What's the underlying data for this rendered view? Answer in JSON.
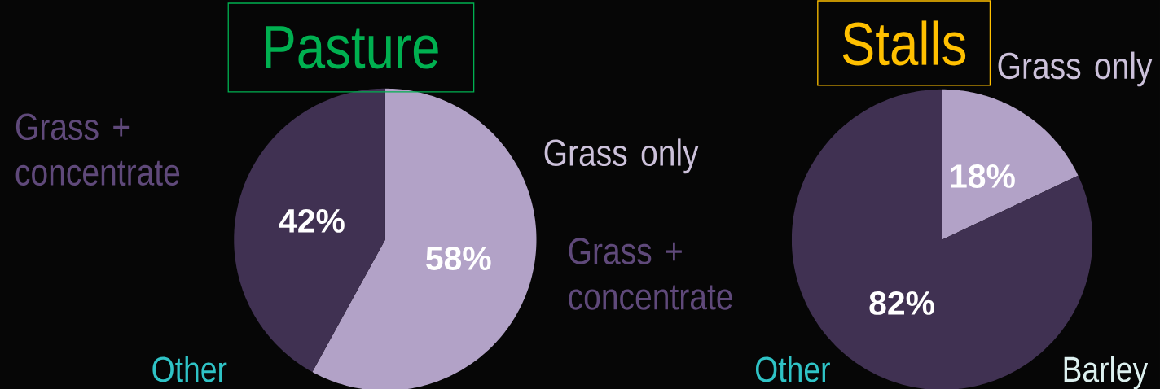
{
  "chart_data": [
    {
      "type": "pie",
      "title": "Pasture",
      "categories": [
        "Grass only",
        "Grass + concentrate"
      ],
      "values": [
        58,
        42
      ],
      "colors": [
        "#b2a2c7",
        "#403152"
      ],
      "value_labels": [
        "58%",
        "42%"
      ],
      "annotations": [
        "Other"
      ]
    },
    {
      "type": "pie",
      "title": "Stalls",
      "categories": [
        "Grass only",
        "Grass + concentrate"
      ],
      "values": [
        18,
        82
      ],
      "colors": [
        "#b2a2c7",
        "#403152"
      ],
      "value_labels": [
        "18%",
        "82%"
      ],
      "annotations": [
        "Other",
        "Barley"
      ]
    }
  ]
}
